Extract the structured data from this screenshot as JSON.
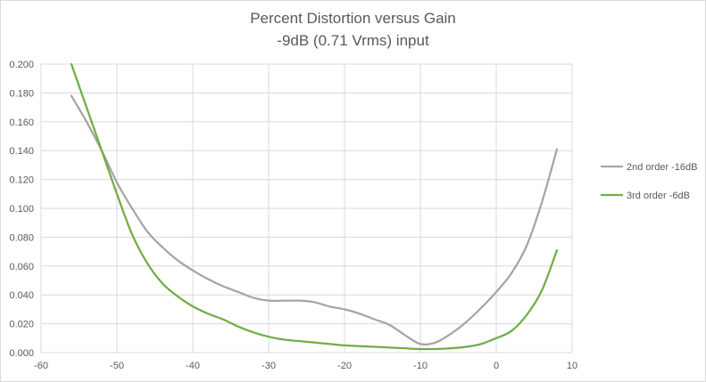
{
  "chart_data": {
    "type": "line",
    "title": "Percent Distortion versus Gain",
    "subtitle": "-9dB (0.71 Vrms) input",
    "xlabel": "",
    "ylabel": "",
    "xlim": [
      -60,
      10
    ],
    "ylim": [
      0,
      0.2
    ],
    "x_ticks": [
      "-60",
      "-50",
      "-40",
      "-30",
      "-20",
      "-10",
      "0",
      "10"
    ],
    "y_ticks": [
      "0.000",
      "0.020",
      "0.040",
      "0.060",
      "0.080",
      "0.100",
      "0.120",
      "0.140",
      "0.160",
      "0.180",
      "0.200"
    ],
    "grid": "horizontal and vertical major gridlines",
    "legend_position": "right",
    "series": [
      {
        "name": "2nd order -16dB",
        "color": "#a5a5a5",
        "x": [
          -56,
          -54,
          -52,
          -50,
          -48,
          -46,
          -44,
          -42,
          -40,
          -38,
          -36,
          -34,
          -32,
          -30,
          -28,
          -26,
          -24,
          -22,
          -20,
          -18,
          -16,
          -14,
          -12,
          -10,
          -8,
          -6,
          -4,
          -2,
          0,
          2,
          4,
          6,
          8
        ],
        "y": [
          0.178,
          0.16,
          0.14,
          0.118,
          0.1,
          0.084,
          0.073,
          0.064,
          0.057,
          0.051,
          0.046,
          0.042,
          0.038,
          0.036,
          0.036,
          0.036,
          0.035,
          0.032,
          0.03,
          0.027,
          0.023,
          0.019,
          0.012,
          0.006,
          0.007,
          0.013,
          0.021,
          0.031,
          0.042,
          0.055,
          0.074,
          0.104,
          0.141
        ]
      },
      {
        "name": "3rd order -6dB",
        "color": "#70ad47",
        "x": [
          -56,
          -54,
          -52,
          -50,
          -48,
          -46,
          -44,
          -42,
          -40,
          -38,
          -36,
          -34,
          -32,
          -30,
          -28,
          -26,
          -24,
          -22,
          -20,
          -18,
          -16,
          -14,
          -12,
          -10,
          -8,
          -6,
          -4,
          -2,
          0,
          2,
          4,
          6,
          8
        ],
        "y": [
          0.2,
          0.17,
          0.14,
          0.11,
          0.082,
          0.062,
          0.048,
          0.039,
          0.032,
          0.027,
          0.023,
          0.018,
          0.014,
          0.011,
          0.009,
          0.008,
          0.007,
          0.006,
          0.005,
          0.0045,
          0.004,
          0.0035,
          0.003,
          0.0025,
          0.0025,
          0.003,
          0.004,
          0.006,
          0.01,
          0.015,
          0.026,
          0.043,
          0.071
        ]
      }
    ]
  }
}
